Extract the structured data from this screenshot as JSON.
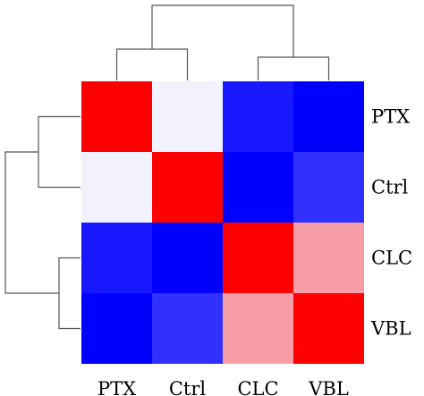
{
  "chart_data": {
    "type": "heatmap",
    "row_labels": [
      "PTX",
      "Ctrl",
      "CLC",
      "VBL"
    ],
    "col_labels": [
      "PTX",
      "Ctrl",
      "CLC",
      "VBL"
    ],
    "values": [
      [
        1.0,
        0.0,
        -0.9,
        -1.0
      ],
      [
        0.0,
        1.0,
        -1.0,
        -0.8
      ],
      [
        -0.9,
        -1.0,
        1.0,
        0.35
      ],
      [
        -1.0,
        -0.8,
        0.35,
        1.0
      ]
    ],
    "color_scale": {
      "negative": "#0000ff",
      "neutral": "#f2f2ff",
      "positive": "#ff0000"
    },
    "row_dendrogram": true,
    "col_dendrogram": true,
    "legend": false,
    "grid": false
  }
}
